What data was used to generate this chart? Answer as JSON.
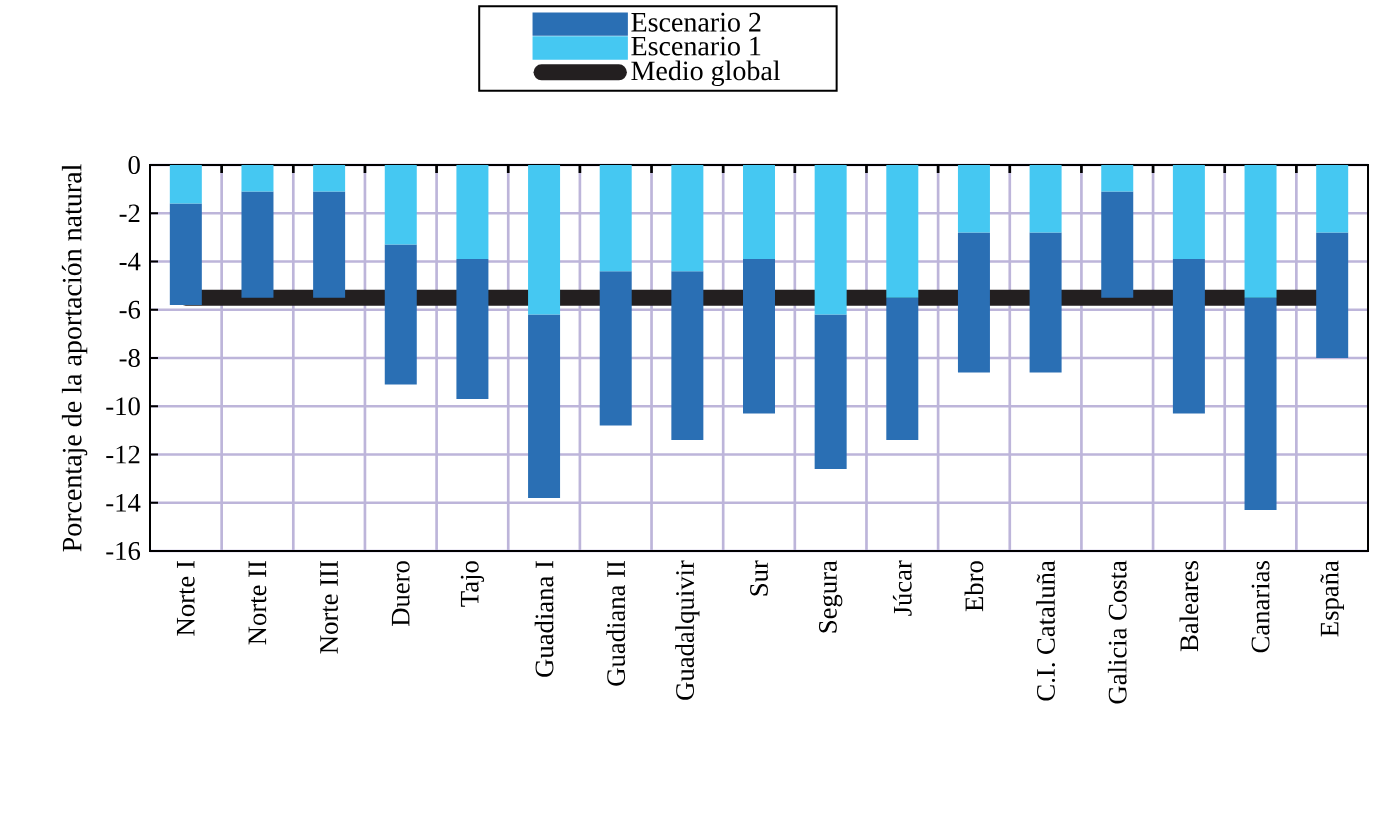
{
  "chart_data": {
    "type": "bar",
    "stacked": true,
    "ylabel": "Porcentaje de la aportación natural",
    "categories": [
      "Norte I",
      "Norte II",
      "Norte III",
      "Duero",
      "Tajo",
      "Guadiana I",
      "Guadiana II",
      "Guadalquivir",
      "Sur",
      "Segura",
      "Júcar",
      "Ebro",
      "C.I. Cataluña",
      "Galicia Costa",
      "Baleares",
      "Canarias",
      "España"
    ],
    "series": [
      {
        "name": "Escenario 1",
        "color": "#45c8f2",
        "values": [
          -1.6,
          -1.1,
          -1.1,
          -3.3,
          -3.9,
          -6.2,
          -4.4,
          -4.4,
          -3.9,
          -6.2,
          -5.5,
          -2.8,
          -2.8,
          -1.1,
          -3.9,
          -5.5,
          -2.8
        ]
      },
      {
        "name": "Escenario 2",
        "color": "#2a6fb4",
        "values": [
          -4.2,
          -4.4,
          -4.4,
          -5.8,
          -5.8,
          -7.6,
          -6.4,
          -7.0,
          -6.4,
          -6.4,
          -5.9,
          -5.8,
          -5.8,
          -4.4,
          -6.4,
          -8.8,
          -5.2
        ]
      }
    ],
    "ref_lines": [
      {
        "axis": "y",
        "value": -5.5,
        "label": "Medio global",
        "color": "#231f20"
      }
    ],
    "ylim": [
      -16,
      0
    ],
    "yticks": [
      -16,
      -14,
      -12,
      -10,
      -8,
      -6,
      -4,
      -2,
      0
    ],
    "grid": true,
    "legend": "top"
  }
}
